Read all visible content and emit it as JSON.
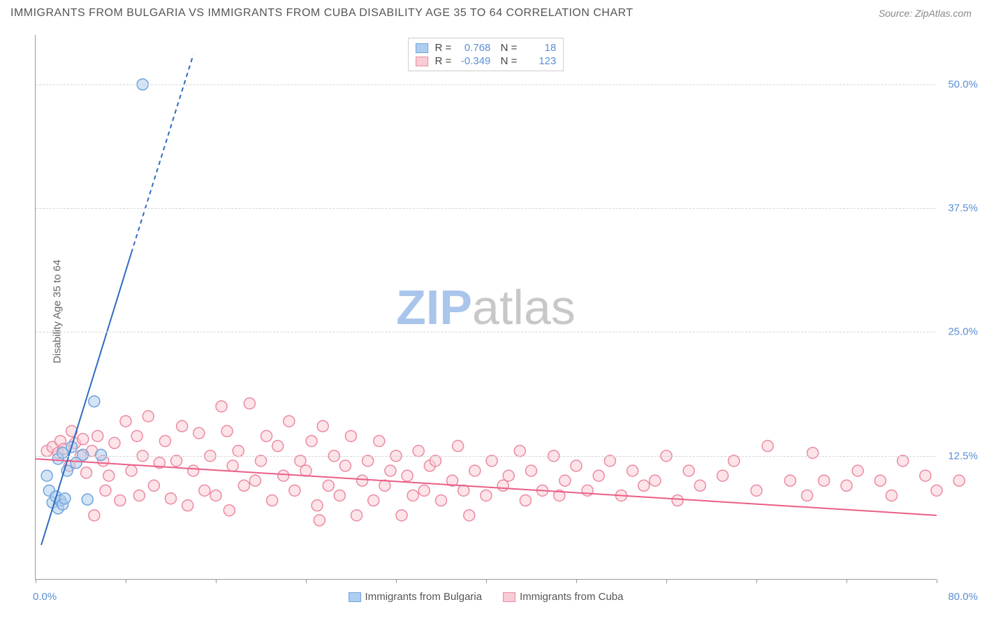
{
  "title": "IMMIGRANTS FROM BULGARIA VS IMMIGRANTS FROM CUBA DISABILITY AGE 35 TO 64 CORRELATION CHART",
  "source": "Source: ZipAtlas.com",
  "y_axis_label": "Disability Age 35 to 64",
  "x_min_label": "0.0%",
  "x_max_label": "80.0%",
  "watermark_zip": "ZIP",
  "watermark_atlas": "atlas",
  "watermark_zip_color": "#a9c5eb",
  "watermark_atlas_color": "#c8c8c8",
  "chart": {
    "type": "scatter",
    "xlim": [
      0,
      80
    ],
    "ylim": [
      0,
      55
    ],
    "y_ticks": [
      12.5,
      25.0,
      37.5,
      50.0
    ],
    "y_tick_labels": [
      "12.5%",
      "25.0%",
      "37.5%",
      "50.0%"
    ],
    "x_tick_positions": [
      0,
      8,
      16,
      24,
      32,
      40,
      48,
      56,
      64,
      72,
      80
    ],
    "grid_color": "#d5d5d5",
    "background_color": "#ffffff",
    "marker_radius": 8,
    "marker_stroke_width": 1.5,
    "series": [
      {
        "name": "Immigrants from Bulgaria",
        "fill_color": "#aeceef",
        "stroke_color": "#6fa3dc",
        "swatch_fill": "#aeceef",
        "swatch_stroke": "#6fa3dc",
        "R": "0.768",
        "N": "18",
        "trend_line": {
          "x1": 0.5,
          "y1": 3.5,
          "x2": 8.5,
          "y2": 33.0,
          "solid_max_x": 8.5,
          "dash_x2": 14.0,
          "dash_y2": 53.0,
          "color": "#2f6bc0",
          "width": 2
        },
        "points": [
          [
            1.2,
            9.0
          ],
          [
            1.5,
            7.8
          ],
          [
            1.8,
            8.4
          ],
          [
            2.0,
            7.2
          ],
          [
            2.2,
            8.0
          ],
          [
            2.4,
            7.6
          ],
          [
            2.6,
            8.2
          ],
          [
            2.8,
            11.0
          ],
          [
            2.0,
            12.2
          ],
          [
            2.4,
            12.8
          ],
          [
            3.2,
            13.4
          ],
          [
            3.6,
            11.8
          ],
          [
            4.2,
            12.6
          ],
          [
            4.6,
            8.1
          ],
          [
            5.8,
            12.6
          ],
          [
            5.2,
            18.0
          ],
          [
            1.0,
            10.5
          ],
          [
            9.5,
            50.0
          ]
        ]
      },
      {
        "name": "Immigrants from Cuba",
        "fill_color": "#f9cdd6",
        "stroke_color": "#ec89a1",
        "swatch_fill": "#f9cdd6",
        "swatch_stroke": "#ec89a1",
        "R": "-0.349",
        "N": "123",
        "trend_line": {
          "x1": 0,
          "y1": 12.2,
          "x2": 80,
          "y2": 6.5,
          "color": "#ea5e85",
          "width": 2
        },
        "points": [
          [
            1.0,
            13.0
          ],
          [
            1.5,
            13.4
          ],
          [
            2.0,
            12.8
          ],
          [
            2.2,
            14.0
          ],
          [
            2.5,
            13.2
          ],
          [
            3.0,
            11.5
          ],
          [
            3.2,
            15.0
          ],
          [
            3.5,
            13.8
          ],
          [
            4.0,
            12.5
          ],
          [
            4.2,
            14.2
          ],
          [
            4.5,
            10.8
          ],
          [
            5.0,
            13.0
          ],
          [
            5.2,
            6.5
          ],
          [
            5.5,
            14.5
          ],
          [
            6.0,
            12.0
          ],
          [
            6.2,
            9.0
          ],
          [
            6.5,
            10.5
          ],
          [
            7.0,
            13.8
          ],
          [
            7.5,
            8.0
          ],
          [
            8.0,
            16.0
          ],
          [
            8.5,
            11.0
          ],
          [
            9.0,
            14.5
          ],
          [
            9.2,
            8.5
          ],
          [
            9.5,
            12.5
          ],
          [
            10.0,
            16.5
          ],
          [
            10.5,
            9.5
          ],
          [
            11.0,
            11.8
          ],
          [
            11.5,
            14.0
          ],
          [
            12.0,
            8.2
          ],
          [
            12.5,
            12.0
          ],
          [
            13.0,
            15.5
          ],
          [
            13.5,
            7.5
          ],
          [
            14.0,
            11.0
          ],
          [
            14.5,
            14.8
          ],
          [
            15.0,
            9.0
          ],
          [
            15.5,
            12.5
          ],
          [
            16.0,
            8.5
          ],
          [
            16.5,
            17.5
          ],
          [
            17.0,
            15.0
          ],
          [
            17.2,
            7.0
          ],
          [
            17.5,
            11.5
          ],
          [
            18.0,
            13.0
          ],
          [
            18.5,
            9.5
          ],
          [
            19.0,
            17.8
          ],
          [
            19.5,
            10.0
          ],
          [
            20.0,
            12.0
          ],
          [
            20.5,
            14.5
          ],
          [
            21.0,
            8.0
          ],
          [
            21.5,
            13.5
          ],
          [
            22.0,
            10.5
          ],
          [
            22.5,
            16.0
          ],
          [
            23.0,
            9.0
          ],
          [
            23.5,
            12.0
          ],
          [
            24.0,
            11.0
          ],
          [
            24.5,
            14.0
          ],
          [
            25.0,
            7.5
          ],
          [
            25.2,
            6.0
          ],
          [
            25.5,
            15.5
          ],
          [
            26.0,
            9.5
          ],
          [
            26.5,
            12.5
          ],
          [
            27.0,
            8.5
          ],
          [
            27.5,
            11.5
          ],
          [
            28.0,
            14.5
          ],
          [
            28.5,
            6.5
          ],
          [
            29.0,
            10.0
          ],
          [
            29.5,
            12.0
          ],
          [
            30.0,
            8.0
          ],
          [
            30.5,
            14.0
          ],
          [
            31.0,
            9.5
          ],
          [
            31.5,
            11.0
          ],
          [
            32.0,
            12.5
          ],
          [
            32.5,
            6.5
          ],
          [
            33.0,
            10.5
          ],
          [
            33.5,
            8.5
          ],
          [
            34.0,
            13.0
          ],
          [
            34.5,
            9.0
          ],
          [
            35.0,
            11.5
          ],
          [
            35.5,
            12.0
          ],
          [
            36.0,
            8.0
          ],
          [
            37.0,
            10.0
          ],
          [
            37.5,
            13.5
          ],
          [
            38.0,
            9.0
          ],
          [
            38.5,
            6.5
          ],
          [
            39.0,
            11.0
          ],
          [
            40.0,
            8.5
          ],
          [
            40.5,
            12.0
          ],
          [
            41.5,
            9.5
          ],
          [
            42.0,
            10.5
          ],
          [
            43.0,
            13.0
          ],
          [
            43.5,
            8.0
          ],
          [
            44.0,
            11.0
          ],
          [
            45.0,
            9.0
          ],
          [
            46.0,
            12.5
          ],
          [
            46.5,
            8.5
          ],
          [
            47.0,
            10.0
          ],
          [
            48.0,
            11.5
          ],
          [
            49.0,
            9.0
          ],
          [
            50.0,
            10.5
          ],
          [
            51.0,
            12.0
          ],
          [
            52.0,
            8.5
          ],
          [
            53.0,
            11.0
          ],
          [
            54.0,
            9.5
          ],
          [
            55.0,
            10.0
          ],
          [
            56.0,
            12.5
          ],
          [
            57.0,
            8.0
          ],
          [
            58.0,
            11.0
          ],
          [
            59.0,
            9.5
          ],
          [
            61.0,
            10.5
          ],
          [
            62.0,
            12.0
          ],
          [
            64.0,
            9.0
          ],
          [
            65.0,
            13.5
          ],
          [
            67.0,
            10.0
          ],
          [
            68.5,
            8.5
          ],
          [
            69.0,
            12.8
          ],
          [
            70.0,
            10.0
          ],
          [
            72.0,
            9.5
          ],
          [
            73.0,
            11.0
          ],
          [
            75.0,
            10.0
          ],
          [
            76.0,
            8.5
          ],
          [
            77.0,
            12.0
          ],
          [
            79.0,
            10.5
          ],
          [
            80.0,
            9.0
          ],
          [
            82.0,
            10.0
          ]
        ]
      }
    ]
  },
  "legend_bottom": {
    "series1_label": "Immigrants from Bulgaria",
    "series2_label": "Immigrants from Cuba"
  }
}
